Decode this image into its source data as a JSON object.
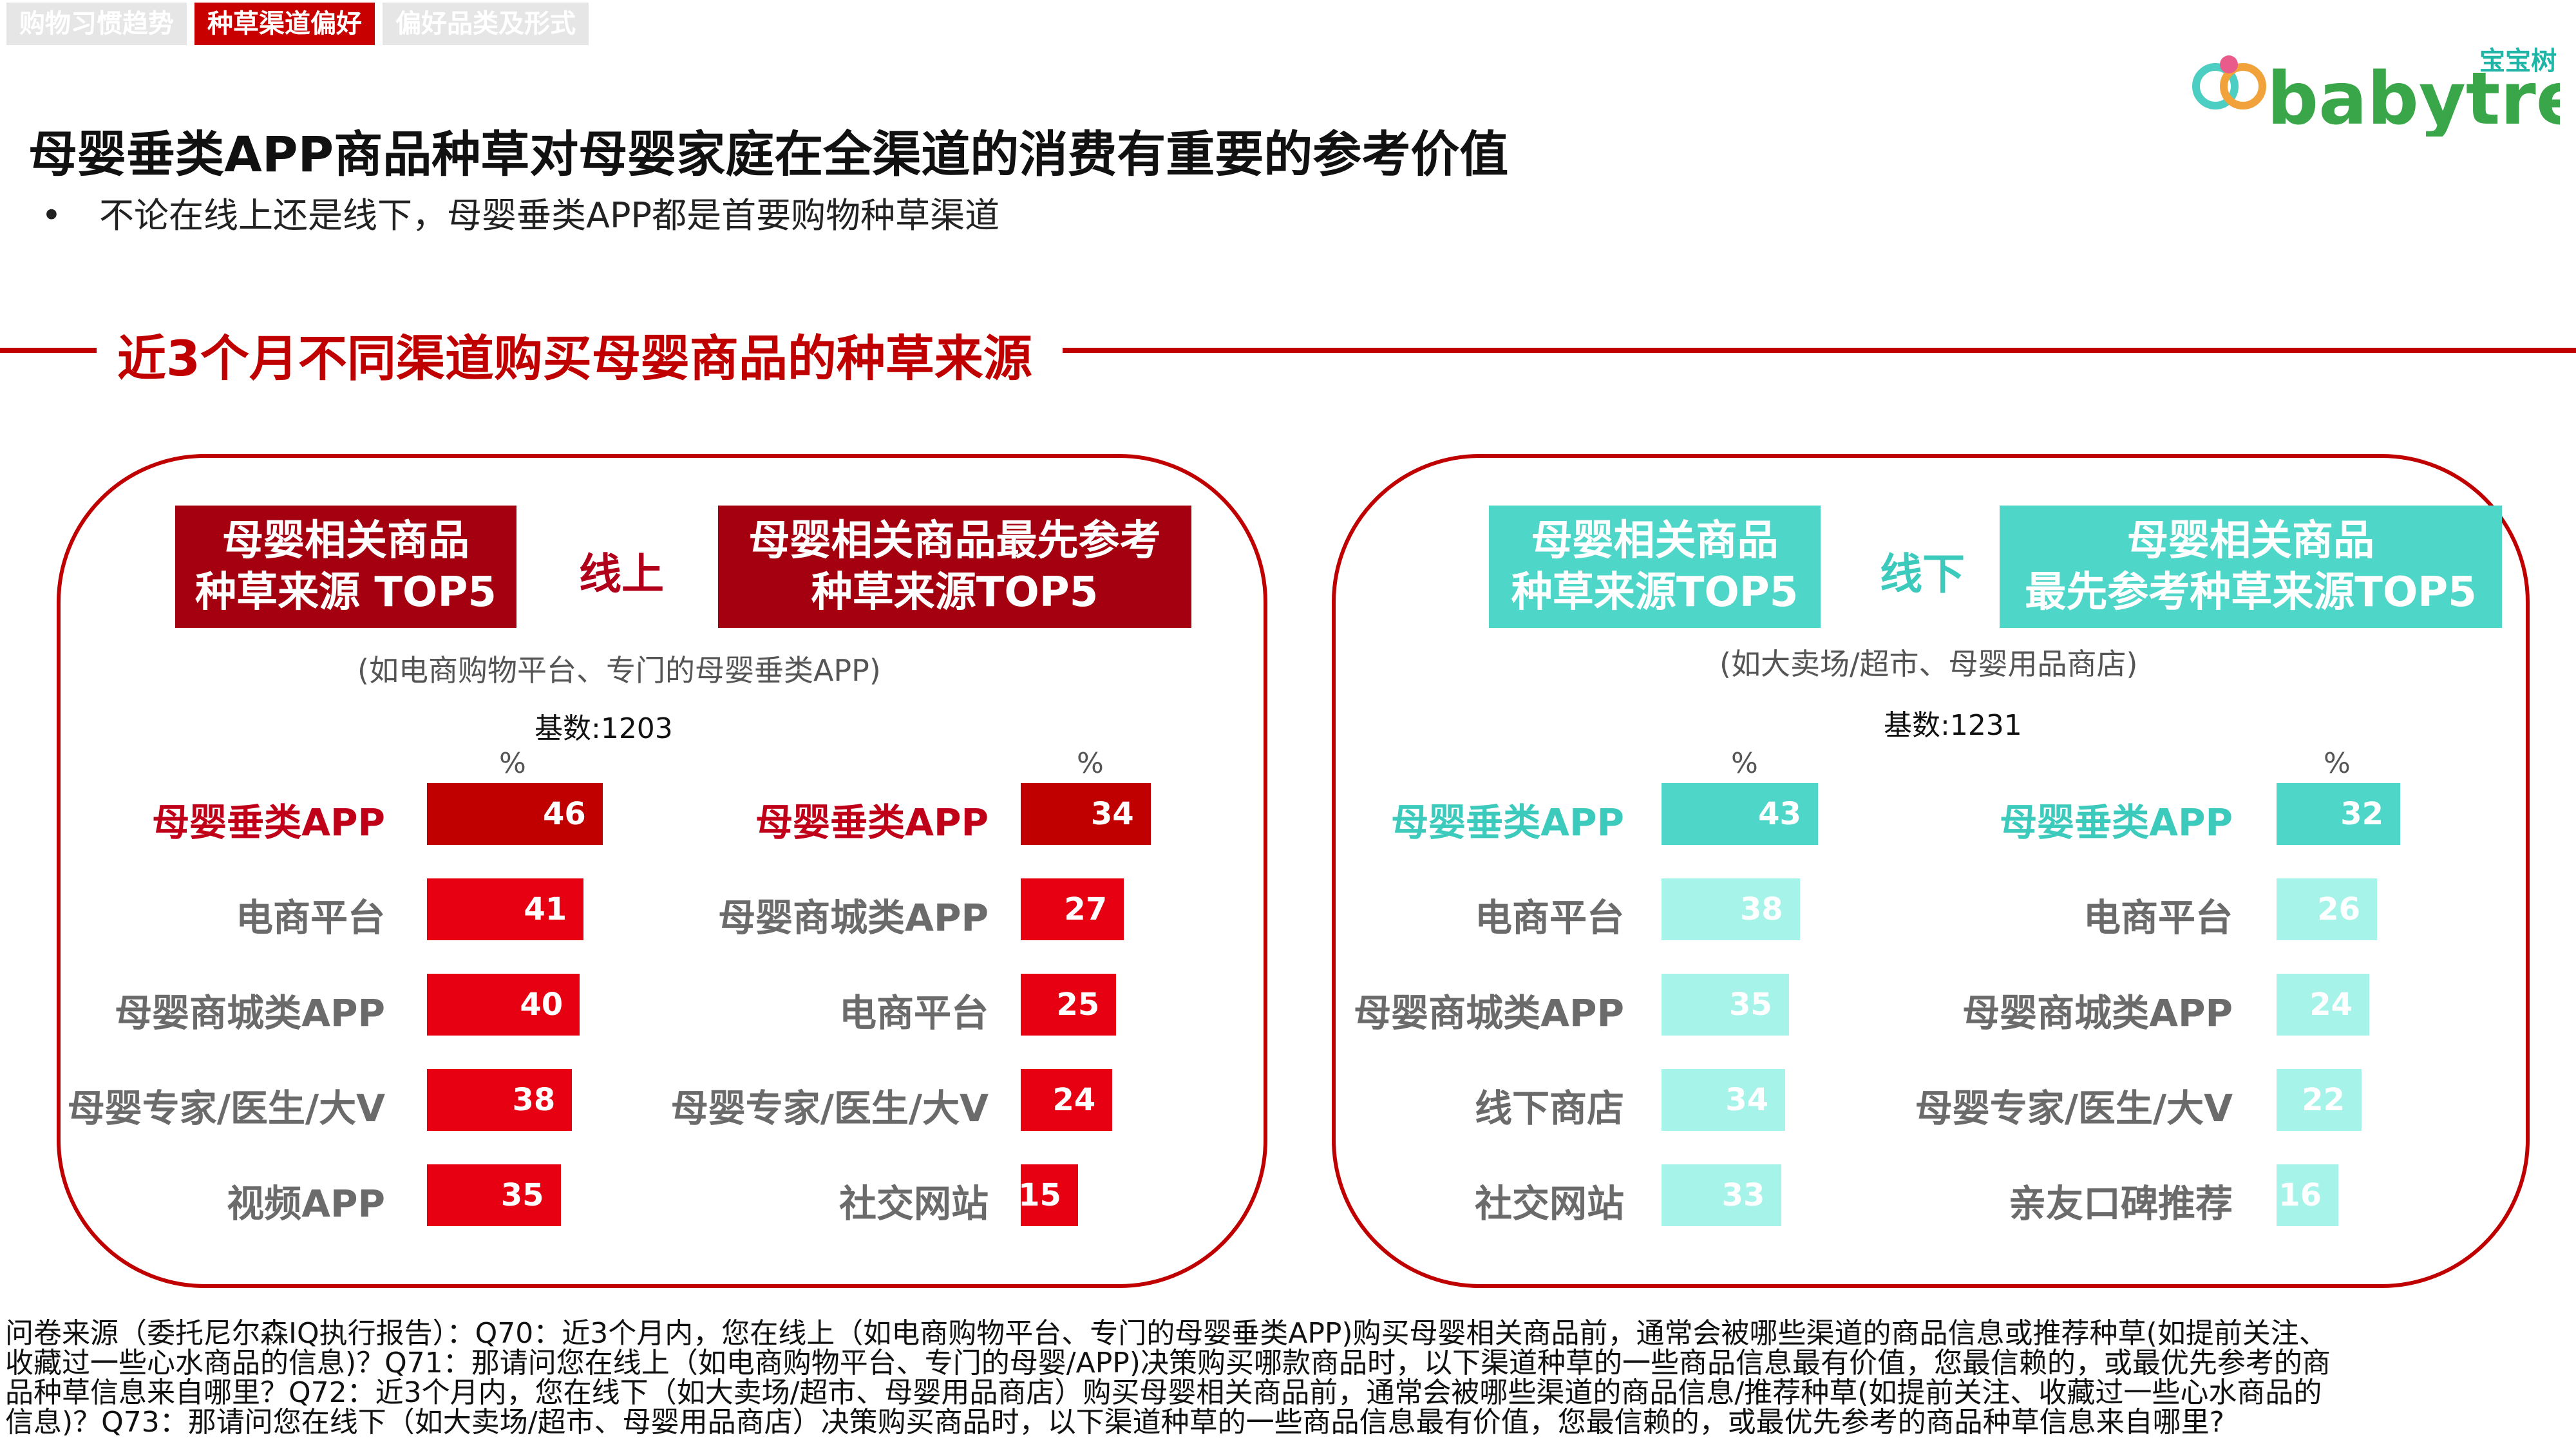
{
  "nav": {
    "tabs": [
      {
        "label": "购物习惯趋势",
        "active": false
      },
      {
        "label": "种草渠道偏好",
        "active": true
      },
      {
        "label": "偏好品类及形式",
        "active": false
      }
    ]
  },
  "logo": {
    "cn": "宝宝树",
    "en": "babytree"
  },
  "headline": "母婴垂类APP商品种草对母婴家庭在全渠道的消费有重要的参考价值",
  "bullet": {
    "marker": "•",
    "text": "不论在线上还是线下，母婴垂类APP都是首要购物种草渠道"
  },
  "section_title": "近3个月不同渠道购买母婴商品的种草来源",
  "online": {
    "box_left": [
      "母婴相关商品",
      "种草来源 TOP5"
    ],
    "mid_label": "线上",
    "box_right": [
      "母婴相关商品最先参考",
      "种草来源TOP5"
    ],
    "note": "(如电商购物平台、专门的母婴垂类APP)",
    "base": "基数:1203",
    "pct": "%"
  },
  "offline": {
    "box_left": [
      "母婴相关商品",
      "种草来源TOP5"
    ],
    "mid_label": "线下",
    "box_right": [
      "母婴相关商品",
      "最先参考种草来源TOP5"
    ],
    "note": "(如大卖场/超市、母婴用品商店)",
    "base": "基数:1231",
    "pct": "%"
  },
  "colors": {
    "online_highlight": "#c00000",
    "online_bar": "#e60012",
    "offline_highlight": "#4ed6c8",
    "offline_bar": "#a6f3ea"
  },
  "chart_data": [
    {
      "type": "bar",
      "orientation": "horizontal",
      "unit": "%",
      "categories": [
        "母婴垂类APP",
        "电商平台",
        "母婴商城类APP",
        "母婴专家/医生/大V",
        "视频APP"
      ],
      "values": [
        46,
        41,
        40,
        38,
        35
      ]
    },
    {
      "type": "bar",
      "orientation": "horizontal",
      "unit": "%",
      "categories": [
        "母婴垂类APP",
        "母婴商城类APP",
        "电商平台",
        "母婴专家/医生/大V",
        "社交网站"
      ],
      "values": [
        34,
        27,
        25,
        24,
        15
      ]
    },
    {
      "type": "bar",
      "orientation": "horizontal",
      "unit": "%",
      "categories": [
        "母婴垂类APP",
        "电商平台",
        "母婴商城类APP",
        "线下商店",
        "社交网站"
      ],
      "values": [
        43,
        38,
        35,
        34,
        33
      ]
    },
    {
      "type": "bar",
      "orientation": "horizontal",
      "unit": "%",
      "categories": [
        "母婴垂类APP",
        "电商平台",
        "母婴商城类APP",
        "母婴专家/医生/大V",
        "亲友口碑推荐"
      ],
      "values": [
        32,
        26,
        24,
        22,
        16
      ]
    }
  ],
  "footer": "问卷来源（委托尼尔森IQ执行报告）：Q70：近3个月内，您在线上（如电商购物平台、专门的母婴垂类APP)购买母婴相关商品前，通常会被哪些渠道的商品信息或推荐种草(如提前关注、收藏过一些心水商品的信息)？Q71：那请问您在线上（如电商购物平台、专门的母婴/APP)决策购买哪款商品时，以下渠道种草的一些商品信息最有价值，您最信赖的，或最优先参考的商品种草信息来自哪里？Q72：近3个月内，您在线下（如大卖场/超市、母婴用品商店）购买母婴相关商品前，通常会被哪些渠道的商品信息/推荐种草(如提前关注、收藏过一些心水商品的信息)？Q73：那请问您在线下（如大卖场/超市、母婴用品商店）决策购买商品时，以下渠道种草的一些商品信息最有价值，您最信赖的，或最优先参考的商品种草信息来自哪里?"
}
